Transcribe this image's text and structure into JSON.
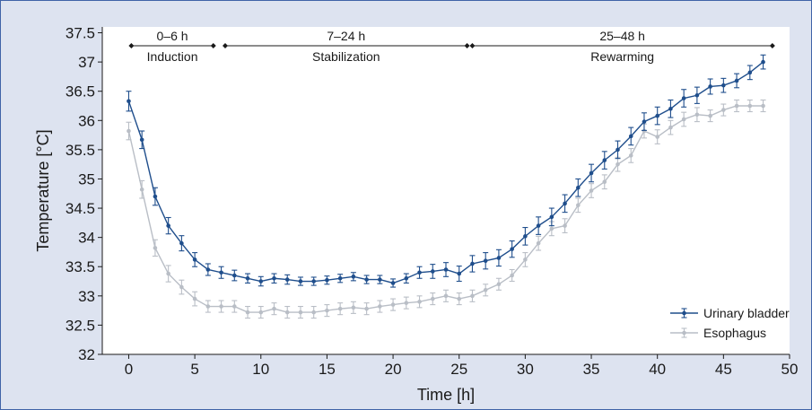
{
  "chart_data": {
    "type": "line",
    "xlabel": "Time [h]",
    "ylabel": "Temperature [°C]",
    "xlim": [
      -2,
      50
    ],
    "ylim": [
      32,
      37.6
    ],
    "x_ticks": [
      "0",
      "5",
      "10",
      "15",
      "20",
      "25",
      "30",
      "35",
      "40",
      "45",
      "50"
    ],
    "y_ticks": [
      "32",
      "32.5",
      "33",
      "33.5",
      "34",
      "34.5",
      "35",
      "35.5",
      "36",
      "36.5",
      "37",
      "37.5"
    ],
    "grid": false,
    "legend_position": "bottom-right",
    "phases": [
      {
        "range": "0–6 h",
        "name": "Induction",
        "start": 0.2,
        "end": 6.4
      },
      {
        "range": "7–24 h",
        "name": "Stabilization",
        "start": 7.3,
        "end": 25.6
      },
      {
        "range": "25–48 h",
        "name": "Rewarming",
        "start": 26.0,
        "end": 48.7
      }
    ],
    "x": [
      0,
      1,
      2,
      3,
      4,
      5,
      6,
      7,
      8,
      9,
      10,
      11,
      12,
      13,
      14,
      15,
      16,
      17,
      18,
      19,
      20,
      21,
      22,
      23,
      24,
      25,
      26,
      27,
      28,
      29,
      30,
      31,
      32,
      33,
      34,
      35,
      36,
      37,
      38,
      39,
      40,
      41,
      42,
      43,
      44,
      45,
      46,
      47,
      48
    ],
    "series": [
      {
        "name": "Urinary bladder",
        "color": "#1f4e8c",
        "values": [
          36.33,
          35.67,
          34.7,
          34.2,
          33.9,
          33.62,
          33.45,
          33.4,
          33.35,
          33.3,
          33.25,
          33.3,
          33.28,
          33.25,
          33.25,
          33.27,
          33.3,
          33.33,
          33.28,
          33.28,
          33.22,
          33.3,
          33.4,
          33.42,
          33.45,
          33.38,
          33.55,
          33.6,
          33.65,
          33.8,
          34.02,
          34.2,
          34.35,
          34.58,
          34.85,
          35.1,
          35.32,
          35.5,
          35.73,
          35.98,
          36.08,
          36.2,
          36.38,
          36.43,
          36.58,
          36.6,
          36.68,
          36.82,
          37.0
        ],
        "errors": [
          0.17,
          0.15,
          0.15,
          0.14,
          0.13,
          0.12,
          0.1,
          0.1,
          0.09,
          0.08,
          0.08,
          0.08,
          0.08,
          0.07,
          0.07,
          0.07,
          0.07,
          0.07,
          0.07,
          0.07,
          0.07,
          0.08,
          0.1,
          0.12,
          0.12,
          0.13,
          0.14,
          0.14,
          0.14,
          0.14,
          0.15,
          0.15,
          0.15,
          0.15,
          0.15,
          0.15,
          0.15,
          0.15,
          0.15,
          0.15,
          0.15,
          0.15,
          0.15,
          0.14,
          0.13,
          0.12,
          0.12,
          0.12,
          0.12
        ]
      },
      {
        "name": "Esophagus",
        "color": "#b9bec6",
        "values": [
          35.82,
          34.82,
          33.82,
          33.38,
          33.15,
          32.95,
          32.82,
          32.82,
          32.82,
          32.72,
          32.72,
          32.78,
          32.72,
          32.72,
          32.72,
          32.75,
          32.78,
          32.8,
          32.78,
          32.82,
          32.85,
          32.88,
          32.9,
          32.95,
          33.0,
          32.95,
          33.0,
          33.1,
          33.2,
          33.35,
          33.62,
          33.9,
          34.15,
          34.2,
          34.55,
          34.8,
          34.95,
          35.25,
          35.4,
          35.82,
          35.72,
          35.88,
          36.02,
          36.1,
          36.08,
          36.18,
          36.25,
          36.25,
          36.25
        ],
        "errors": [
          0.15,
          0.15,
          0.14,
          0.14,
          0.12,
          0.12,
          0.1,
          0.1,
          0.1,
          0.1,
          0.1,
          0.1,
          0.1,
          0.1,
          0.1,
          0.1,
          0.1,
          0.1,
          0.1,
          0.1,
          0.1,
          0.1,
          0.1,
          0.1,
          0.1,
          0.1,
          0.1,
          0.1,
          0.1,
          0.1,
          0.12,
          0.12,
          0.12,
          0.12,
          0.12,
          0.12,
          0.12,
          0.12,
          0.12,
          0.12,
          0.12,
          0.12,
          0.12,
          0.12,
          0.1,
          0.1,
          0.1,
          0.1,
          0.1
        ]
      }
    ]
  }
}
